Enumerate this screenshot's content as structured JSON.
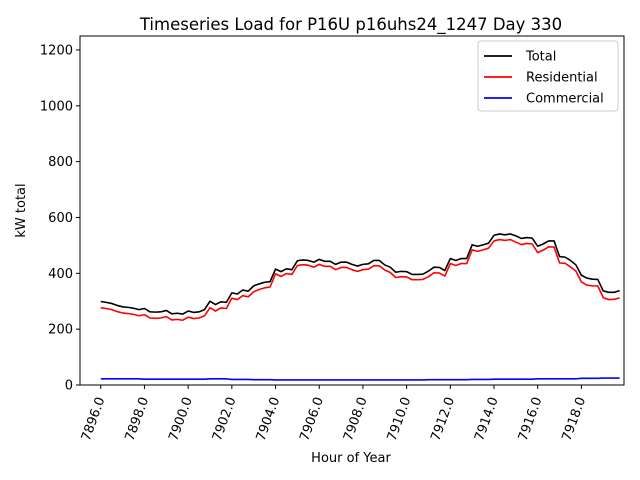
{
  "chart_data": {
    "type": "line",
    "title": "Timeseries Load for P16U p16uhs24_1247  Day 330",
    "xlabel": "Hour of Year",
    "ylabel": "kW total",
    "xlim": [
      7895.05,
      7919.95
    ],
    "ylim": [
      0,
      1250
    ],
    "xticks": [
      7896,
      7898,
      7900,
      7902,
      7904,
      7906,
      7908,
      7910,
      7912,
      7914,
      7916,
      7918
    ],
    "xtick_labels": [
      "7896.0",
      "7898.0",
      "7900.0",
      "7902.0",
      "7904.0",
      "7906.0",
      "7908.0",
      "7910.0",
      "7912.0",
      "7914.0",
      "7916.0",
      "7918.0"
    ],
    "yticks": [
      0,
      200,
      400,
      600,
      800,
      1000,
      1200
    ],
    "ytick_labels": [
      "0",
      "200",
      "400",
      "600",
      "800",
      "1000",
      "1200"
    ],
    "legend_position": "top-right",
    "x_start": 7896,
    "x_step": 0.25,
    "series": [
      {
        "name": "Total",
        "color": "#000000",
        "values": [
          299,
          296,
          292,
          285,
          280,
          278,
          275,
          270,
          274,
          262,
          261,
          262,
          267,
          255,
          257,
          254,
          265,
          260,
          262,
          270,
          300,
          288,
          298,
          296,
          330,
          326,
          340,
          336,
          355,
          362,
          368,
          370,
          415,
          406,
          416,
          413,
          445,
          448,
          446,
          440,
          450,
          443,
          443,
          432,
          440,
          440,
          432,
          426,
          432,
          434,
          446,
          446,
          430,
          422,
          404,
          407,
          406,
          396,
          396,
          397,
          408,
          422,
          421,
          410,
          453,
          446,
          453,
          453,
          502,
          497,
          502,
          508,
          536,
          541,
          538,
          541,
          534,
          525,
          528,
          526,
          497,
          505,
          516,
          516,
          460,
          458,
          446,
          430,
          393,
          383,
          379,
          378,
          337,
          332,
          332,
          338
        ]
      },
      {
        "name": "Residential",
        "color": "#ff0000",
        "values": [
          277,
          274,
          270,
          263,
          258,
          256,
          253,
          248,
          252,
          240,
          239,
          240,
          245,
          233,
          235,
          232,
          243,
          238,
          240,
          248,
          277,
          265,
          276,
          274,
          311,
          306,
          320,
          316,
          334,
          342,
          348,
          351,
          398,
          389,
          399,
          396,
          428,
          431,
          429,
          422,
          432,
          425,
          425,
          413,
          421,
          421,
          413,
          407,
          413,
          415,
          427,
          427,
          412,
          403,
          385,
          388,
          387,
          377,
          377,
          378,
          388,
          402,
          401,
          390,
          435,
          428,
          435,
          435,
          484,
          479,
          484,
          490,
          516,
          521,
          518,
          521,
          512,
          503,
          507,
          505,
          474,
          483,
          495,
          494,
          437,
          436,
          423,
          408,
          369,
          358,
          355,
          355,
          313,
          306,
          307,
          312
        ]
      },
      {
        "name": "Commercial",
        "color": "#0000ff",
        "values": [
          22,
          22,
          22,
          22,
          22,
          22,
          22,
          22,
          21,
          21,
          21,
          21,
          21,
          21,
          21,
          21,
          21,
          21,
          21,
          21,
          22,
          22,
          22,
          22,
          20,
          20,
          20,
          20,
          19,
          19,
          19,
          19,
          18,
          18,
          18,
          18,
          18,
          18,
          18,
          18,
          18,
          18,
          18,
          18,
          18,
          18,
          18,
          18,
          18,
          18,
          18,
          18,
          18,
          18,
          18,
          18,
          18,
          18,
          18,
          18,
          19,
          19,
          19,
          19,
          19,
          19,
          19,
          19,
          20,
          20,
          20,
          20,
          21,
          21,
          21,
          21,
          21,
          21,
          21,
          21,
          22,
          22,
          22,
          22,
          22,
          22,
          22,
          22,
          24,
          24,
          24,
          24,
          25,
          25,
          25,
          25
        ]
      }
    ]
  }
}
